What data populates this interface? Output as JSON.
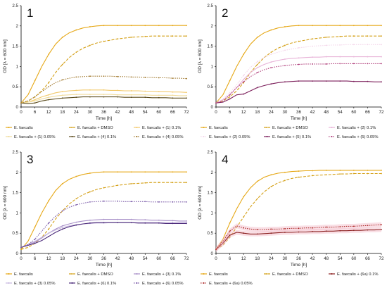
{
  "colors": {
    "faecalis": "#E6A817",
    "dmso": "#D4A017",
    "c01": "#F2C96B",
    "c005": "#F0DC9C",
    "c4_01": "#5A4A1A",
    "c4_005": "#A0782C",
    "c2_01": "#E8B4D8",
    "c2_005": "#F4D6EA",
    "c5_01": "#7B1E5A",
    "c5_005": "#B0407C",
    "c3_01": "#A890C8",
    "c3_005": "#C8B8E0",
    "c6_01": "#4B2A7A",
    "c6_005": "#7A5AA8",
    "c6a_01": "#8B2020",
    "c6a_005": "#B03030",
    "band": "#F2B8C6"
  },
  "chart_data": [
    {
      "type": "line",
      "panel_label": "1",
      "xlabel": "Time [h]",
      "ylabel": "OD [λ = 600 nm]",
      "xlim": [
        0,
        72
      ],
      "ylim": [
        0,
        2.5
      ],
      "xticks": [
        "0",
        "6",
        "12",
        "18",
        "24",
        "30",
        "36",
        "42",
        "48",
        "54",
        "60",
        "66",
        "72"
      ],
      "yticks": [
        "0",
        "0.5",
        "1",
        "1.5",
        "2",
        "2.5"
      ],
      "grid": false,
      "legend_position": "bottom",
      "x": [
        0,
        3,
        6,
        9,
        12,
        15,
        18,
        21,
        24,
        27,
        30,
        33,
        36,
        39,
        42,
        45,
        48,
        51,
        54,
        57,
        60,
        63,
        66,
        69,
        72
      ],
      "series": [
        {
          "name": "E. faecalis",
          "color_key": "faecalis",
          "style": "solid",
          "values": [
            0.1,
            0.3,
            0.65,
            1.0,
            1.3,
            1.55,
            1.72,
            1.83,
            1.9,
            1.95,
            1.98,
            2.0,
            2.01,
            2.01,
            2.01,
            2.01,
            2.01,
            2.01,
            2.01,
            2.01,
            2.01,
            2.01,
            2.01,
            2.01,
            2.01
          ]
        },
        {
          "name": "E. faecalis + DMSO",
          "color_key": "dmso",
          "style": "dashed",
          "values": [
            0.1,
            0.15,
            0.25,
            0.4,
            0.6,
            0.85,
            1.05,
            1.22,
            1.35,
            1.45,
            1.52,
            1.58,
            1.62,
            1.65,
            1.68,
            1.7,
            1.72,
            1.73,
            1.74,
            1.75,
            1.75,
            1.75,
            1.75,
            1.75,
            1.75
          ]
        },
        {
          "name": "E. faecalis + (1) 0.1%",
          "color_key": "c01",
          "style": "solid",
          "values": [
            0.1,
            0.12,
            0.18,
            0.25,
            0.3,
            0.35,
            0.38,
            0.4,
            0.41,
            0.42,
            0.42,
            0.42,
            0.42,
            0.41,
            0.41,
            0.4,
            0.4,
            0.4,
            0.39,
            0.39,
            0.38,
            0.38,
            0.37,
            0.37,
            0.36
          ]
        },
        {
          "name": "E. faecalis + (1) 0.05%",
          "color_key": "c005",
          "style": "solid",
          "values": [
            0.1,
            0.12,
            0.15,
            0.2,
            0.24,
            0.27,
            0.29,
            0.3,
            0.31,
            0.31,
            0.31,
            0.31,
            0.31,
            0.31,
            0.3,
            0.3,
            0.3,
            0.3,
            0.3,
            0.29,
            0.29,
            0.29,
            0.29,
            0.28,
            0.28
          ]
        },
        {
          "name": "E. faecalis + (4) 0.1%",
          "color_key": "c4_01",
          "style": "solid",
          "values": [
            0.1,
            0.08,
            0.1,
            0.15,
            0.18,
            0.2,
            0.22,
            0.23,
            0.24,
            0.25,
            0.25,
            0.25,
            0.25,
            0.25,
            0.25,
            0.24,
            0.24,
            0.24,
            0.24,
            0.23,
            0.23,
            0.23,
            0.22,
            0.22,
            0.22
          ]
        },
        {
          "name": "E. faecalis + (4) 0.05%",
          "color_key": "c4_005",
          "style": "dotted",
          "values": [
            0.1,
            0.15,
            0.25,
            0.38,
            0.5,
            0.6,
            0.67,
            0.71,
            0.74,
            0.75,
            0.76,
            0.76,
            0.76,
            0.76,
            0.75,
            0.75,
            0.74,
            0.74,
            0.73,
            0.73,
            0.72,
            0.72,
            0.71,
            0.71,
            0.7
          ]
        }
      ]
    },
    {
      "type": "line",
      "panel_label": "2",
      "xlabel": "Time [h]",
      "ylabel": "OD [λ = 600 nm]",
      "xlim": [
        0,
        72
      ],
      "ylim": [
        0,
        2.5
      ],
      "xticks": [
        "0",
        "6",
        "12",
        "18",
        "24",
        "30",
        "36",
        "42",
        "48",
        "54",
        "60",
        "66",
        "72"
      ],
      "yticks": [
        "0",
        "0.5",
        "1",
        "1.5",
        "2",
        "2.5"
      ],
      "grid": false,
      "legend_position": "bottom",
      "x": [
        0,
        3,
        6,
        9,
        12,
        15,
        18,
        21,
        24,
        27,
        30,
        33,
        36,
        39,
        42,
        45,
        48,
        51,
        54,
        57,
        60,
        63,
        66,
        69,
        72
      ],
      "series": [
        {
          "name": "E. faecalis",
          "color_key": "faecalis",
          "style": "solid",
          "values": [
            0.1,
            0.3,
            0.65,
            1.0,
            1.3,
            1.55,
            1.72,
            1.83,
            1.9,
            1.95,
            1.98,
            2.0,
            2.01,
            2.01,
            2.01,
            2.01,
            2.01,
            2.01,
            2.01,
            2.01,
            2.01,
            2.01,
            2.01,
            2.01,
            2.01
          ]
        },
        {
          "name": "E. faecalis + DMSO",
          "color_key": "dmso",
          "style": "dashed",
          "values": [
            0.1,
            0.15,
            0.25,
            0.4,
            0.6,
            0.85,
            1.05,
            1.22,
            1.35,
            1.45,
            1.52,
            1.58,
            1.62,
            1.65,
            1.68,
            1.7,
            1.72,
            1.73,
            1.74,
            1.75,
            1.75,
            1.75,
            1.75,
            1.75,
            1.75
          ]
        },
        {
          "name": "E. faecalis + (2) 0.1%",
          "color_key": "c2_01",
          "style": "solid",
          "values": [
            0.1,
            0.18,
            0.3,
            0.48,
            0.68,
            0.85,
            0.97,
            1.05,
            1.11,
            1.15,
            1.18,
            1.2,
            1.21,
            1.22,
            1.23,
            1.23,
            1.24,
            1.24,
            1.24,
            1.24,
            1.24,
            1.24,
            1.24,
            1.24,
            1.24
          ]
        },
        {
          "name": "E. faecalis + (2) 0.05%",
          "color_key": "c2_005",
          "style": "dotted",
          "values": [
            0.1,
            0.2,
            0.35,
            0.55,
            0.78,
            0.98,
            1.12,
            1.22,
            1.3,
            1.35,
            1.4,
            1.43,
            1.46,
            1.48,
            1.5,
            1.51,
            1.52,
            1.53,
            1.53,
            1.54,
            1.54,
            1.54,
            1.54,
            1.54,
            1.54
          ]
        },
        {
          "name": "E. faecalis + (5) 0.1%",
          "color_key": "c5_01",
          "style": "solid",
          "values": [
            0.1,
            0.12,
            0.2,
            0.3,
            0.32,
            0.4,
            0.48,
            0.53,
            0.57,
            0.6,
            0.62,
            0.63,
            0.64,
            0.64,
            0.64,
            0.64,
            0.64,
            0.64,
            0.64,
            0.64,
            0.63,
            0.63,
            0.63,
            0.62,
            0.62
          ]
        },
        {
          "name": "E. faecalis + (5) 0.05%",
          "color_key": "c5_005",
          "style": "dotted",
          "values": [
            0.1,
            0.15,
            0.3,
            0.48,
            0.62,
            0.75,
            0.85,
            0.92,
            0.97,
            1.0,
            1.02,
            1.04,
            1.05,
            1.06,
            1.06,
            1.06,
            1.06,
            1.07,
            1.07,
            1.07,
            1.07,
            1.07,
            1.07,
            1.07,
            1.07
          ]
        }
      ]
    },
    {
      "type": "line",
      "panel_label": "3",
      "xlabel": "Time [h]",
      "ylabel": "OD [λ = 600 nm]",
      "xlim": [
        0,
        72
      ],
      "ylim": [
        0,
        2.5
      ],
      "xticks": [
        "0",
        "6",
        "12",
        "18",
        "24",
        "30",
        "36",
        "42",
        "48",
        "54",
        "60",
        "66",
        "72"
      ],
      "yticks": [
        "0",
        "0.5",
        "1",
        "1.5",
        "2",
        "2.5"
      ],
      "grid": false,
      "legend_position": "bottom",
      "x": [
        0,
        3,
        6,
        9,
        12,
        15,
        18,
        21,
        24,
        27,
        30,
        33,
        36,
        39,
        42,
        45,
        48,
        51,
        54,
        57,
        60,
        63,
        66,
        69,
        72
      ],
      "series": [
        {
          "name": "E. faecalis",
          "color_key": "faecalis",
          "style": "solid",
          "values": [
            0.1,
            0.3,
            0.65,
            1.0,
            1.3,
            1.55,
            1.72,
            1.83,
            1.9,
            1.95,
            1.98,
            2.0,
            2.01,
            2.01,
            2.01,
            2.01,
            2.01,
            2.01,
            2.01,
            2.01,
            2.01,
            2.01,
            2.01,
            2.01,
            2.01
          ]
        },
        {
          "name": "E. faecalis + DMSO",
          "color_key": "dmso",
          "style": "dashed",
          "values": [
            0.1,
            0.15,
            0.25,
            0.4,
            0.6,
            0.85,
            1.05,
            1.22,
            1.35,
            1.45,
            1.52,
            1.58,
            1.62,
            1.65,
            1.68,
            1.7,
            1.72,
            1.73,
            1.74,
            1.75,
            1.75,
            1.75,
            1.75,
            1.75,
            1.75
          ]
        },
        {
          "name": "E. faecalis + (3) 0.1%",
          "color_key": "c3_01",
          "style": "solid",
          "values": [
            0.15,
            0.2,
            0.28,
            0.38,
            0.5,
            0.6,
            0.68,
            0.73,
            0.77,
            0.8,
            0.82,
            0.83,
            0.84,
            0.84,
            0.84,
            0.84,
            0.84,
            0.83,
            0.83,
            0.82,
            0.82,
            0.81,
            0.81,
            0.8,
            0.8
          ]
        },
        {
          "name": "E. faecalis + (3) 0.05%",
          "color_key": "c3_005",
          "style": "solid",
          "values": [
            0.15,
            0.22,
            0.3,
            0.4,
            0.5,
            0.58,
            0.64,
            0.68,
            0.71,
            0.73,
            0.74,
            0.75,
            0.75,
            0.76,
            0.76,
            0.76,
            0.76,
            0.76,
            0.76,
            0.76,
            0.76,
            0.76,
            0.76,
            0.76,
            0.76
          ]
        },
        {
          "name": "E. faecalis + (6) 0.1%",
          "color_key": "c6_01",
          "style": "solid",
          "values": [
            0.15,
            0.2,
            0.25,
            0.32,
            0.42,
            0.52,
            0.6,
            0.66,
            0.7,
            0.73,
            0.75,
            0.76,
            0.76,
            0.76,
            0.76,
            0.76,
            0.76,
            0.75,
            0.75,
            0.75,
            0.75,
            0.74,
            0.74,
            0.74,
            0.74
          ]
        },
        {
          "name": "E. faecalis + (6) 0.05%",
          "color_key": "c6_005",
          "style": "dotted",
          "values": [
            0.15,
            0.22,
            0.35,
            0.55,
            0.75,
            0.92,
            1.05,
            1.14,
            1.2,
            1.24,
            1.27,
            1.28,
            1.29,
            1.29,
            1.29,
            1.28,
            1.28,
            1.28,
            1.28,
            1.27,
            1.27,
            1.27,
            1.27,
            1.27,
            1.27
          ]
        }
      ]
    },
    {
      "type": "line",
      "panel_label": "4",
      "xlabel": "Time [h]",
      "ylabel": "OD [λ = 600 nm]",
      "xlim": [
        0,
        72
      ],
      "ylim": [
        0,
        2.5
      ],
      "xticks": [
        "0",
        "6",
        "12",
        "18",
        "24",
        "30",
        "36",
        "42",
        "48",
        "54",
        "60",
        "66",
        "72"
      ],
      "yticks": [
        "0",
        "0.5",
        "1",
        "1.5",
        "2",
        "2.5"
      ],
      "grid": false,
      "legend_position": "bottom",
      "x": [
        0,
        3,
        6,
        9,
        12,
        15,
        18,
        21,
        24,
        27,
        30,
        33,
        36,
        39,
        42,
        45,
        48,
        51,
        54,
        57,
        60,
        63,
        66,
        69,
        72
      ],
      "series": [
        {
          "name": "E. faecalis",
          "color_key": "faecalis",
          "style": "solid",
          "values": [
            0.1,
            0.35,
            0.75,
            1.1,
            1.4,
            1.62,
            1.78,
            1.88,
            1.94,
            1.98,
            2.0,
            2.02,
            2.03,
            2.04,
            2.04,
            2.05,
            2.05,
            2.05,
            2.05,
            2.05,
            2.05,
            2.05,
            2.05,
            2.05,
            2.05
          ]
        },
        {
          "name": "E. faecalis + DMSO",
          "color_key": "dmso",
          "style": "dashed",
          "values": [
            0.1,
            0.2,
            0.4,
            0.65,
            0.9,
            1.15,
            1.35,
            1.52,
            1.65,
            1.74,
            1.8,
            1.85,
            1.88,
            1.9,
            1.92,
            1.93,
            1.94,
            1.95,
            1.96,
            1.96,
            1.97,
            1.97,
            1.97,
            1.97,
            1.97
          ]
        },
        {
          "name": "E. faecalis + (6a) 0.1%",
          "color_key": "c6a_01",
          "style": "solid",
          "values": [
            0.1,
            0.25,
            0.45,
            0.52,
            0.5,
            0.48,
            0.48,
            0.49,
            0.5,
            0.51,
            0.52,
            0.52,
            0.53,
            0.53,
            0.54,
            0.54,
            0.55,
            0.55,
            0.56,
            0.56,
            0.57,
            0.57,
            0.58,
            0.58,
            0.59
          ]
        },
        {
          "name": "E. faecalis + (6a) 0.05%",
          "color_key": "c6a_005",
          "style": "dotted",
          "values": [
            0.1,
            0.3,
            0.55,
            0.68,
            0.63,
            0.6,
            0.59,
            0.59,
            0.6,
            0.6,
            0.61,
            0.62,
            0.62,
            0.63,
            0.63,
            0.64,
            0.65,
            0.65,
            0.66,
            0.67,
            0.67,
            0.68,
            0.69,
            0.7,
            0.71
          ]
        }
      ]
    }
  ]
}
